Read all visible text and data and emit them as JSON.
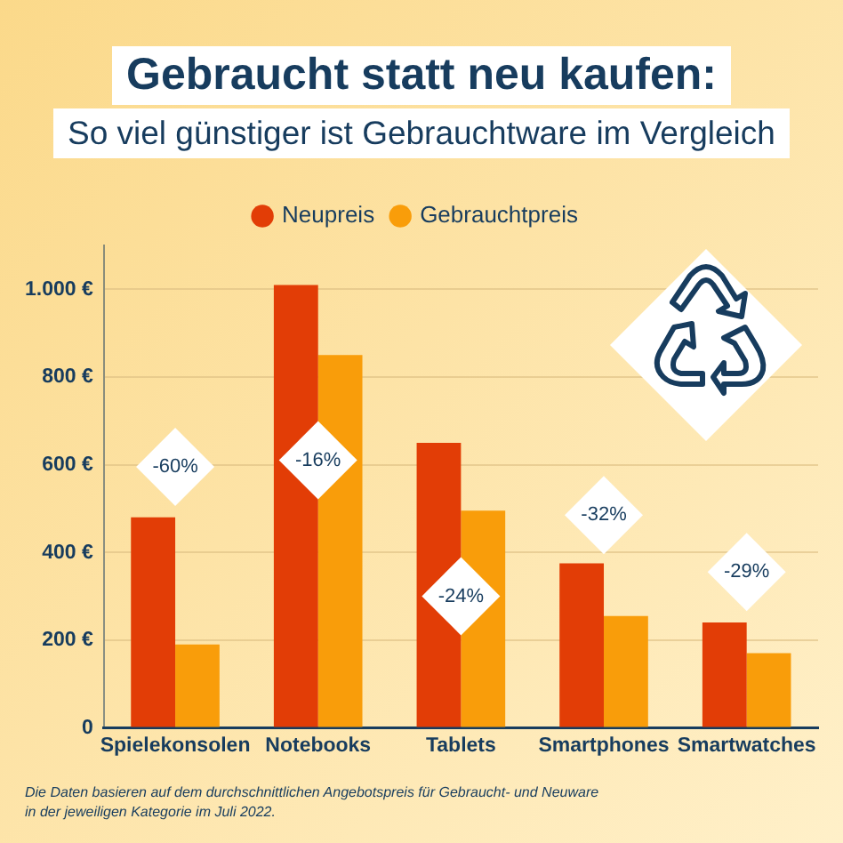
{
  "chart_data": {
    "type": "bar",
    "title": "Gebraucht statt neu kaufen:",
    "subtitle": "So viel günstiger ist Gebrauchtware im Vergleich",
    "categories": [
      "Spielekonsolen",
      "Notebooks",
      "Tablets",
      "Smartphones",
      "Smartwatches"
    ],
    "series": [
      {
        "name": "Neupreis",
        "color": "#e23d06",
        "values": [
          480,
          1010,
          650,
          375,
          240
        ]
      },
      {
        "name": "Gebrauchtpreis",
        "color": "#f99d0a",
        "values": [
          190,
          850,
          495,
          255,
          170
        ]
      }
    ],
    "ylim": [
      0,
      1100
    ],
    "yticks": [
      {
        "value": 0,
        "label": "0"
      },
      {
        "value": 200,
        "label": "200 €"
      },
      {
        "value": 400,
        "label": "400 €"
      },
      {
        "value": 600,
        "label": "600 €"
      },
      {
        "value": 800,
        "label": "800 €"
      },
      {
        "value": 1000,
        "label": "1.000 €"
      }
    ],
    "grid": "y",
    "legend": "top",
    "annotations": [
      {
        "text": "-60%",
        "x": "Spielekonsolen",
        "y": 595
      },
      {
        "text": "-16%",
        "x": "Notebooks",
        "y": 610
      },
      {
        "text": "-24%",
        "x": "Tablets",
        "y": 300
      },
      {
        "text": "-32%",
        "x": "Smartphones",
        "y": 485
      },
      {
        "text": "-29%",
        "x": "Smartwatches",
        "y": 355
      },
      "Die Daten basieren auf dem durchschnittlichen Angebotspreis für Gebraucht- und Neuware in der jeweiligen Kategorie im Juli 2022."
    ]
  }
}
